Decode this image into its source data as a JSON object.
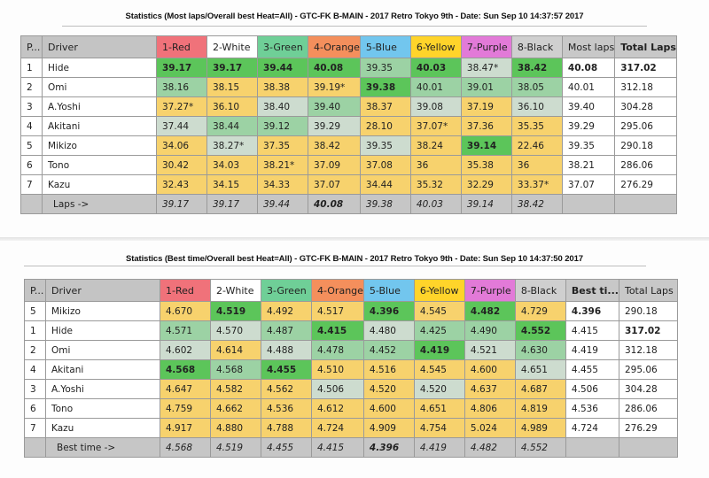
{
  "colors": {
    "red": "#f0727a",
    "white": "#ffffff",
    "green": "#6fcf97",
    "orange": "#f48f5c",
    "blue": "#72c6ee",
    "yellow": "#ffd42a",
    "purple": "#e27ad8",
    "black": "#cfcfcf",
    "best": "#5cc55a",
    "good": "#9cd2a4",
    "mid": "#cddccf",
    "low": "#f7d26d"
  },
  "lanes": [
    {
      "label": "1-Red",
      "color": "#f0727a"
    },
    {
      "label": "2-White",
      "color": "#ffffff"
    },
    {
      "label": "3-Green",
      "color": "#6fcf97"
    },
    {
      "label": "4-Orange",
      "color": "#f48f5c"
    },
    {
      "label": "5-Blue",
      "color": "#72c6ee"
    },
    {
      "label": "6-Yellow",
      "color": "#ffd42a"
    },
    {
      "label": "7-Purple",
      "color": "#e27ad8"
    },
    {
      "label": "8-Black",
      "color": "#cfcfcf"
    }
  ],
  "table1": {
    "title": "Statistics (Most laps/Overall best Heat=All) - GTC-FK B-MAIN - 2017 Retro Tokyo 9th - Date: Sun Sep 10 14:37:57 2017",
    "headers": {
      "pos": "P...",
      "driver": "Driver",
      "extra1": "Most laps",
      "extra2": "Total Laps"
    },
    "rows": [
      {
        "pos": "1",
        "driver": "Hide",
        "cells": [
          {
            "v": "39.17",
            "c": "best",
            "b": true
          },
          {
            "v": "39.17",
            "c": "best",
            "b": true
          },
          {
            "v": "39.44",
            "c": "best",
            "b": true
          },
          {
            "v": "40.08",
            "c": "best",
            "b": true
          },
          {
            "v": "39.35",
            "c": "good"
          },
          {
            "v": "40.03",
            "c": "best",
            "b": true
          },
          {
            "v": "38.47*",
            "c": "mid"
          },
          {
            "v": "38.42",
            "c": "best",
            "b": true
          }
        ],
        "extra1": "40.08",
        "extra1_bold": true,
        "extra2": "317.02",
        "extra2_bold": true
      },
      {
        "pos": "2",
        "driver": "Omi",
        "cells": [
          {
            "v": "38.16",
            "c": "good"
          },
          {
            "v": "38.15",
            "c": "low"
          },
          {
            "v": "38.38",
            "c": "low"
          },
          {
            "v": "39.19*",
            "c": "low"
          },
          {
            "v": "39.38",
            "c": "best",
            "b": true
          },
          {
            "v": "40.01",
            "c": "good"
          },
          {
            "v": "39.01",
            "c": "good"
          },
          {
            "v": "38.05",
            "c": "good"
          }
        ],
        "extra1": "40.01",
        "extra2": "312.18"
      },
      {
        "pos": "3",
        "driver": "A.Yoshi",
        "cells": [
          {
            "v": "37.27*",
            "c": "low"
          },
          {
            "v": "36.10",
            "c": "low"
          },
          {
            "v": "38.40",
            "c": "mid"
          },
          {
            "v": "39.40",
            "c": "good"
          },
          {
            "v": "38.37",
            "c": "low"
          },
          {
            "v": "39.08",
            "c": "mid"
          },
          {
            "v": "37.19",
            "c": "low"
          },
          {
            "v": "36.10",
            "c": "mid"
          }
        ],
        "extra1": "39.40",
        "extra2": "304.28"
      },
      {
        "pos": "4",
        "driver": "Akitani",
        "cells": [
          {
            "v": "37.44",
            "c": "mid"
          },
          {
            "v": "38.44",
            "c": "good"
          },
          {
            "v": "39.12",
            "c": "good"
          },
          {
            "v": "39.29",
            "c": "mid"
          },
          {
            "v": "28.10",
            "c": "low"
          },
          {
            "v": "37.07*",
            "c": "low"
          },
          {
            "v": "37.36",
            "c": "low"
          },
          {
            "v": "35.35",
            "c": "low"
          }
        ],
        "extra1": "39.29",
        "extra2": "295.06"
      },
      {
        "pos": "5",
        "driver": "Mikizo",
        "cells": [
          {
            "v": "34.06",
            "c": "low"
          },
          {
            "v": "38.27*",
            "c": "mid"
          },
          {
            "v": "37.35",
            "c": "low"
          },
          {
            "v": "38.42",
            "c": "low"
          },
          {
            "v": "39.35",
            "c": "mid"
          },
          {
            "v": "38.24",
            "c": "low"
          },
          {
            "v": "39.14",
            "c": "best",
            "b": true
          },
          {
            "v": "22.46",
            "c": "low"
          }
        ],
        "extra1": "39.35",
        "extra2": "290.18"
      },
      {
        "pos": "6",
        "driver": "Tono",
        "cells": [
          {
            "v": "30.42",
            "c": "low"
          },
          {
            "v": "34.03",
            "c": "low"
          },
          {
            "v": "38.21*",
            "c": "low"
          },
          {
            "v": "37.09",
            "c": "low"
          },
          {
            "v": "37.08",
            "c": "low"
          },
          {
            "v": " 36",
            "c": "low"
          },
          {
            "v": "35.38",
            "c": "low"
          },
          {
            "v": " 36",
            "c": "low"
          }
        ],
        "extra1": "38.21",
        "extra2": "286.06"
      },
      {
        "pos": "7",
        "driver": "Kazu",
        "cells": [
          {
            "v": "32.43",
            "c": "low"
          },
          {
            "v": "34.15",
            "c": "low"
          },
          {
            "v": "34.33",
            "c": "low"
          },
          {
            "v": "37.07",
            "c": "low"
          },
          {
            "v": "34.44",
            "c": "low"
          },
          {
            "v": "35.32",
            "c": "low"
          },
          {
            "v": "32.29",
            "c": "low"
          },
          {
            "v": "33.37*",
            "c": "low"
          }
        ],
        "extra1": "37.07",
        "extra2": "276.29"
      }
    ],
    "footer": {
      "label": "Laps ->",
      "cells": [
        {
          "v": "39.17"
        },
        {
          "v": "39.17"
        },
        {
          "v": "39.44"
        },
        {
          "v": "40.08",
          "b": true
        },
        {
          "v": "39.38"
        },
        {
          "v": "40.03"
        },
        {
          "v": "39.14"
        },
        {
          "v": "38.42"
        }
      ]
    }
  },
  "table2": {
    "title": "Statistics (Best time/Overall best Heat=All) - GTC-FK B-MAIN - 2017 Retro Tokyo 9th - Date: Sun Sep 10 14:37:50 2017",
    "headers": {
      "pos": "P...",
      "driver": "Driver",
      "extra1": "Best ti...",
      "extra2": "Total Laps"
    },
    "rows": [
      {
        "pos": "5",
        "driver": "Mikizo",
        "cells": [
          {
            "v": "4.670",
            "c": "low"
          },
          {
            "v": "4.519",
            "c": "best",
            "b": true
          },
          {
            "v": "4.492",
            "c": "low"
          },
          {
            "v": "4.517",
            "c": "low"
          },
          {
            "v": "4.396",
            "c": "best",
            "b": true
          },
          {
            "v": "4.545",
            "c": "low"
          },
          {
            "v": "4.482",
            "c": "best",
            "b": true
          },
          {
            "v": "4.729",
            "c": "low"
          }
        ],
        "extra1": "4.396",
        "extra1_bold": true,
        "extra2": "290.18"
      },
      {
        "pos": "1",
        "driver": "Hide",
        "cells": [
          {
            "v": "4.571",
            "c": "good"
          },
          {
            "v": "4.570",
            "c": "mid"
          },
          {
            "v": "4.487",
            "c": "good"
          },
          {
            "v": "4.415",
            "c": "best",
            "b": true
          },
          {
            "v": "4.480",
            "c": "mid"
          },
          {
            "v": "4.425",
            "c": "good"
          },
          {
            "v": "4.490",
            "c": "good"
          },
          {
            "v": "4.552",
            "c": "best",
            "b": true
          }
        ],
        "extra1": "4.415",
        "extra2": "317.02",
        "extra2_bold": true
      },
      {
        "pos": "2",
        "driver": "Omi",
        "cells": [
          {
            "v": "4.602",
            "c": "mid"
          },
          {
            "v": "4.614",
            "c": "low"
          },
          {
            "v": "4.488",
            "c": "mid"
          },
          {
            "v": "4.478",
            "c": "good"
          },
          {
            "v": "4.452",
            "c": "good"
          },
          {
            "v": "4.419",
            "c": "best",
            "b": true
          },
          {
            "v": "4.521",
            "c": "mid"
          },
          {
            "v": "4.630",
            "c": "good"
          }
        ],
        "extra1": "4.419",
        "extra2": "312.18"
      },
      {
        "pos": "4",
        "driver": "Akitani",
        "cells": [
          {
            "v": "4.568",
            "c": "best",
            "b": true
          },
          {
            "v": "4.568",
            "c": "good"
          },
          {
            "v": "4.455",
            "c": "best",
            "b": true
          },
          {
            "v": "4.510",
            "c": "low"
          },
          {
            "v": "4.516",
            "c": "low"
          },
          {
            "v": "4.545",
            "c": "low"
          },
          {
            "v": "4.600",
            "c": "low"
          },
          {
            "v": "4.651",
            "c": "mid"
          }
        ],
        "extra1": "4.455",
        "extra2": "295.06"
      },
      {
        "pos": "3",
        "driver": "A.Yoshi",
        "cells": [
          {
            "v": "4.647",
            "c": "low"
          },
          {
            "v": "4.582",
            "c": "low"
          },
          {
            "v": "4.562",
            "c": "low"
          },
          {
            "v": "4.506",
            "c": "mid"
          },
          {
            "v": "4.520",
            "c": "low"
          },
          {
            "v": "4.520",
            "c": "mid"
          },
          {
            "v": "4.637",
            "c": "low"
          },
          {
            "v": "4.687",
            "c": "low"
          }
        ],
        "extra1": "4.506",
        "extra2": "304.28"
      },
      {
        "pos": "6",
        "driver": "Tono",
        "cells": [
          {
            "v": "4.759",
            "c": "low"
          },
          {
            "v": "4.662",
            "c": "low"
          },
          {
            "v": "4.536",
            "c": "low"
          },
          {
            "v": "4.612",
            "c": "low"
          },
          {
            "v": "4.600",
            "c": "low"
          },
          {
            "v": "4.651",
            "c": "low"
          },
          {
            "v": "4.806",
            "c": "low"
          },
          {
            "v": "4.819",
            "c": "low"
          }
        ],
        "extra1": "4.536",
        "extra2": "286.06"
      },
      {
        "pos": "7",
        "driver": "Kazu",
        "cells": [
          {
            "v": "4.917",
            "c": "low"
          },
          {
            "v": "4.880",
            "c": "low"
          },
          {
            "v": "4.788",
            "c": "low"
          },
          {
            "v": "4.724",
            "c": "low"
          },
          {
            "v": "4.909",
            "c": "low"
          },
          {
            "v": "4.754",
            "c": "low"
          },
          {
            "v": "5.024",
            "c": "low"
          },
          {
            "v": "4.989",
            "c": "low"
          }
        ],
        "extra1": "4.724",
        "extra2": "276.29"
      }
    ],
    "footer": {
      "label": "Best time ->",
      "cells": [
        {
          "v": "4.568"
        },
        {
          "v": "4.519"
        },
        {
          "v": "4.455"
        },
        {
          "v": "4.415"
        },
        {
          "v": "4.396",
          "b": true
        },
        {
          "v": "4.419"
        },
        {
          "v": "4.482"
        },
        {
          "v": "4.552"
        }
      ]
    }
  }
}
